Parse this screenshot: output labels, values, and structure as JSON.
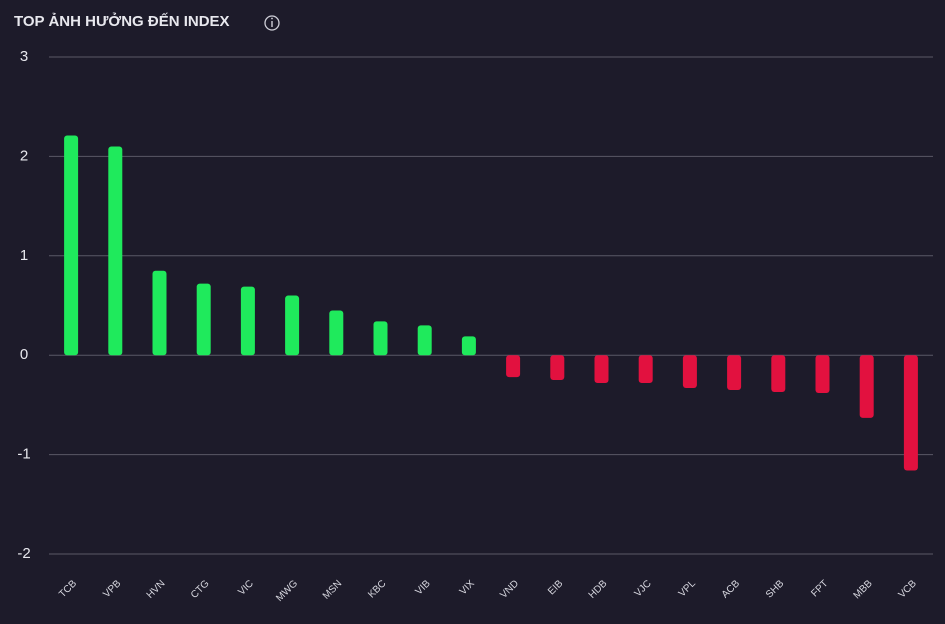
{
  "chart_data": {
    "type": "bar",
    "title": "TOP ẢNH HƯỞNG ĐẾN INDEX",
    "categories": [
      "TCB",
      "VPB",
      "HVN",
      "CTG",
      "VIC",
      "MWG",
      "MSN",
      "KBC",
      "VIB",
      "VIX",
      "VND",
      "EIB",
      "HDB",
      "VJC",
      "VPL",
      "ACB",
      "SHB",
      "FPT",
      "MBB",
      "VCB"
    ],
    "values": [
      2.21,
      2.1,
      0.85,
      0.72,
      0.69,
      0.6,
      0.45,
      0.34,
      0.3,
      0.19,
      -0.22,
      -0.25,
      -0.28,
      -0.28,
      -0.33,
      -0.35,
      -0.37,
      -0.38,
      -0.63,
      -1.16
    ],
    "positive_color": "#1fea5c",
    "negative_color": "#e2113f",
    "ylim": [
      -2,
      3
    ],
    "yticks": [
      -2,
      -1,
      0,
      1,
      2,
      3
    ],
    "grid": true
  }
}
